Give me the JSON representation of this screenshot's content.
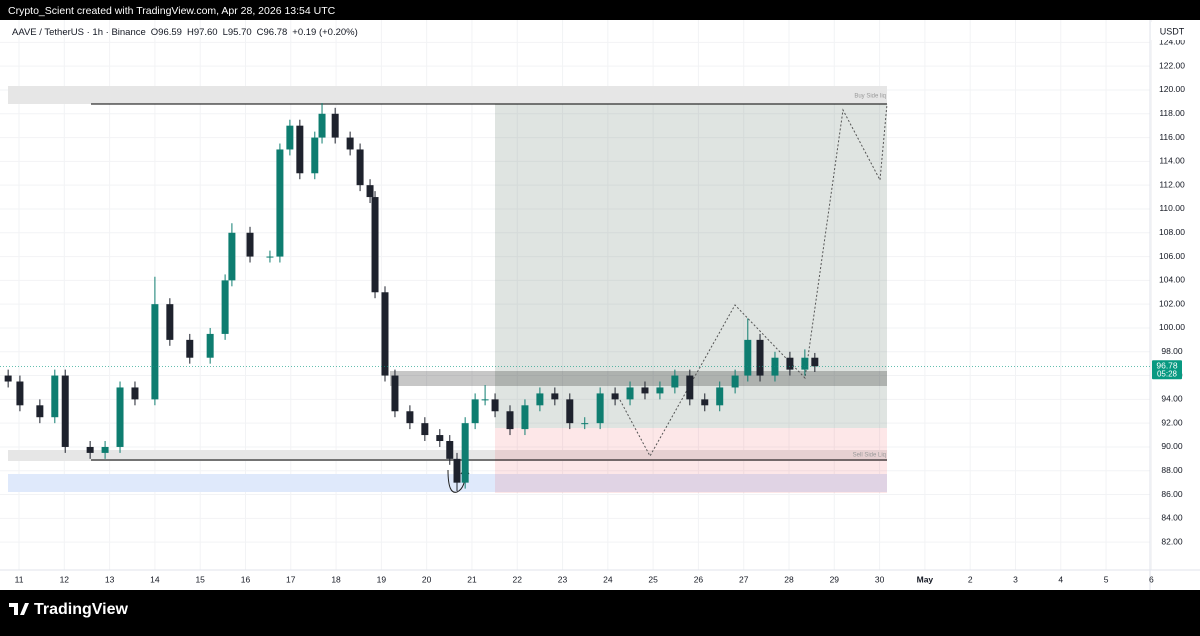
{
  "header": "Crypto_Scient created with TradingView.com, Apr 28, 2026 13:54 UTC",
  "footer": "TradingView",
  "chart_data": {
    "type": "candlestick",
    "symbol": "AAVE / TetherUS · 1h · Binance",
    "ohlc": [
      "O96.59",
      "H97.60",
      "L95.70",
      "C96.78"
    ],
    "change": "+0.19 (+0.20%)",
    "currency": "USDT",
    "last_price": 96.78,
    "countdown": "05:28",
    "annotations": [
      "Buy Side liq",
      "Sell Side Liq"
    ],
    "up_color": "#0e7d70",
    "down_color": "#1e222d",
    "xlim": [
      10.58,
      35.97
    ],
    "ylim": [
      79.66,
      125.88
    ],
    "xticks": [
      11,
      12,
      13,
      14,
      15,
      16,
      17,
      18,
      19,
      20,
      21,
      22,
      23,
      24,
      25,
      26,
      27,
      28,
      29,
      30,
      {
        "value": 31,
        "label": "May"
      },
      {
        "value": 32,
        "label": "2"
      },
      {
        "value": 33,
        "label": "3"
      },
      {
        "value": 34,
        "label": "4"
      },
      {
        "value": 35,
        "label": "5"
      },
      {
        "value": 36,
        "label": "6"
      }
    ],
    "yticks": [
      {
        "value": 82,
        "label": "82.00"
      },
      {
        "value": 84,
        "label": "84.00"
      },
      {
        "value": 86,
        "label": "86.00"
      },
      {
        "value": 88,
        "label": "88.00"
      },
      {
        "value": 90,
        "label": "90.00"
      },
      {
        "value": 92,
        "label": "92.00"
      },
      {
        "value": 94,
        "label": "94.00"
      },
      {
        "value": 96,
        "label": "96.00"
      },
      {
        "value": 98,
        "label": "98.00"
      },
      {
        "value": 100,
        "label": "100.00"
      },
      {
        "value": 102,
        "label": "102.00"
      },
      {
        "value": 104,
        "label": "104.00"
      },
      {
        "value": 106,
        "label": "106.00"
      },
      {
        "value": 108,
        "label": "108.00"
      },
      {
        "value": 110,
        "label": "110.00"
      },
      {
        "value": 112,
        "label": "112.00"
      },
      {
        "value": 114,
        "label": "114.00"
      },
      {
        "value": 116,
        "label": "116.00"
      },
      {
        "value": 118,
        "label": "118.00"
      },
      {
        "value": 120,
        "label": "120.00"
      },
      {
        "value": 122,
        "label": "122.00"
      },
      {
        "value": 124,
        "label": "124.00"
      }
    ],
    "x": [
      10.76,
      11.02,
      11.46,
      11.79,
      12.02,
      12.57,
      12.9,
      13.23,
      13.56,
      14.0,
      14.33,
      14.77,
      15.22,
      15.55,
      15.7,
      16.1,
      16.54,
      16.76,
      16.98,
      17.2,
      17.53,
      17.69,
      17.98,
      18.31,
      18.53,
      18.75,
      18.86,
      19.08,
      19.3,
      19.63,
      19.96,
      20.29,
      20.51,
      20.67,
      20.85,
      21.07,
      21.29,
      21.51,
      21.84,
      22.17,
      22.5,
      22.83,
      23.16,
      23.49,
      23.83,
      24.16,
      24.49,
      24.82,
      25.15,
      25.48,
      25.81,
      26.14,
      26.47,
      26.81,
      27.09,
      27.36,
      27.69,
      28.02,
      28.35,
      28.57
    ],
    "open": [
      96,
      95.5,
      93.5,
      92.5,
      96,
      90,
      89.5,
      90,
      95,
      94,
      102,
      99,
      97.5,
      99.5,
      104,
      108,
      106,
      106,
      115,
      117,
      113,
      116,
      118,
      116,
      115,
      112,
      111,
      103,
      96,
      93,
      92,
      91,
      90.5,
      89,
      87,
      92,
      94,
      94,
      93,
      91.5,
      93.5,
      94.5,
      94,
      92,
      92,
      94.5,
      94,
      95,
      94.5,
      95,
      96,
      94,
      93.5,
      95,
      96,
      99,
      96,
      97.5,
      96.5,
      97.5
    ],
    "high": [
      96.5,
      96,
      94,
      96.5,
      96.5,
      90.5,
      90.5,
      95.5,
      95.5,
      104.3,
      102.5,
      99.5,
      100,
      104.5,
      108.8,
      108.5,
      106.5,
      115.5,
      117.5,
      117.5,
      116.5,
      118.9,
      118.5,
      116.5,
      115.5,
      112.5,
      111.5,
      103.5,
      96.5,
      93.5,
      92.5,
      91.5,
      91,
      89.5,
      92.5,
      94.5,
      95.2,
      94.5,
      93.5,
      94,
      95,
      95,
      94.5,
      92.5,
      95,
      95,
      95.5,
      95.5,
      95.5,
      96.5,
      96.5,
      94.5,
      95.5,
      96.5,
      100.8,
      99.5,
      98,
      98,
      98.2,
      97.9
    ],
    "low": [
      95,
      93,
      92,
      92,
      89.5,
      89,
      89,
      89.5,
      93.5,
      93.5,
      98.5,
      97,
      97,
      99,
      103.5,
      105.5,
      105.5,
      105.5,
      114.5,
      112.5,
      112.5,
      115.5,
      115.5,
      114.5,
      111.5,
      110.5,
      102.5,
      95.5,
      92.5,
      91.5,
      90.5,
      90,
      88.5,
      86.3,
      86.5,
      91.5,
      93.5,
      92.5,
      91,
      91,
      93,
      93.5,
      91.5,
      91.5,
      91.5,
      93.5,
      93.5,
      94,
      94,
      94.5,
      93.5,
      93,
      93,
      94.5,
      95.5,
      95.5,
      95.5,
      96,
      96,
      96.3
    ],
    "close": [
      95.5,
      93.5,
      92.5,
      96,
      90,
      89.5,
      90,
      95,
      94,
      102,
      99,
      97.5,
      99.5,
      104,
      108,
      106,
      106,
      115,
      117,
      113,
      116,
      118,
      116,
      115,
      112,
      111,
      103,
      96,
      93,
      92,
      91,
      90.5,
      89,
      87,
      92,
      94,
      94,
      93,
      91.5,
      93.5,
      94.5,
      94,
      92,
      92,
      94.5,
      94,
      95,
      94.5,
      95,
      96,
      94,
      93.5,
      95,
      96,
      99,
      96,
      97.5,
      96.5,
      97.5,
      96.78
    ]
  }
}
